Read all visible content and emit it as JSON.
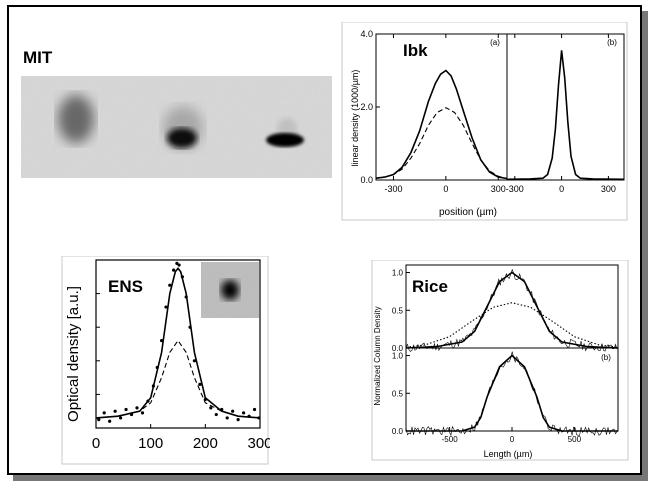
{
  "slide": {
    "title_mit": "MIT"
  },
  "chart_data": [
    {
      "id": "ibk",
      "type": "line",
      "label": "Ibk",
      "ylabel": "linear density (1000/µm)",
      "xlabel": "position (µm)",
      "panels": [
        {
          "tag": "(a)",
          "xlim": [
            -400,
            350
          ],
          "ylim": [
            0,
            4
          ],
          "xticks": [
            -300,
            0,
            300
          ],
          "yticks": [
            0.0,
            2.0,
            4.0
          ],
          "series": [
            {
              "style": "solid",
              "x": [
                -400,
                -350,
                -300,
                -250,
                -200,
                -150,
                -100,
                -60,
                -30,
                0,
                30,
                60,
                100,
                150,
                200,
                250,
                300,
                350
              ],
              "y": [
                0.05,
                0.08,
                0.15,
                0.35,
                0.75,
                1.35,
                2.15,
                2.65,
                2.9,
                3.0,
                2.85,
                2.5,
                1.9,
                1.15,
                0.55,
                0.22,
                0.08,
                0.04
              ]
            },
            {
              "style": "dashed",
              "x": [
                -400,
                -350,
                -300,
                -250,
                -200,
                -150,
                -100,
                -50,
                0,
                50,
                100,
                150,
                200,
                250,
                300,
                350
              ],
              "y": [
                0.05,
                0.08,
                0.15,
                0.3,
                0.6,
                1.0,
                1.5,
                1.85,
                1.98,
                1.85,
                1.5,
                1.0,
                0.55,
                0.25,
                0.1,
                0.04
              ]
            },
            {
              "style": "dotted",
              "x": [
                -400,
                350
              ],
              "y": [
                0,
                0
              ]
            }
          ]
        },
        {
          "tag": "(b)",
          "xlim": [
            -350,
            400
          ],
          "ylim": [
            0,
            4
          ],
          "xticks": [
            -300,
            0,
            300
          ],
          "series": [
            {
              "style": "solid",
              "x": [
                -350,
                -200,
                -120,
                -90,
                -60,
                -40,
                -20,
                0,
                20,
                40,
                60,
                90,
                120,
                200,
                400
              ],
              "y": [
                0.02,
                0.03,
                0.05,
                0.15,
                0.6,
                1.4,
                2.6,
                3.55,
                2.8,
                1.6,
                0.65,
                0.15,
                0.05,
                0.03,
                0.02
              ]
            },
            {
              "style": "dotted",
              "x": [
                -350,
                400
              ],
              "y": [
                0,
                0
              ]
            }
          ]
        }
      ]
    },
    {
      "id": "ens",
      "type": "scatter",
      "label": "ENS",
      "ylabel": "Optical density [a.u.]",
      "xlabel": "",
      "xlim": [
        0,
        300
      ],
      "ylim": [
        0,
        1
      ],
      "xticks": [
        0,
        100,
        200,
        300
      ],
      "series": [
        {
          "style": "solid",
          "x": [
            0,
            40,
            80,
            100,
            120,
            135,
            145,
            150,
            155,
            165,
            180,
            200,
            230,
            260,
            300
          ],
          "y": [
            0.06,
            0.07,
            0.1,
            0.18,
            0.45,
            0.8,
            0.93,
            0.95,
            0.93,
            0.8,
            0.45,
            0.18,
            0.1,
            0.07,
            0.06
          ]
        },
        {
          "style": "dashed",
          "x": [
            0,
            40,
            80,
            100,
            120,
            135,
            150,
            165,
            180,
            200,
            230,
            260,
            300
          ],
          "y": [
            0.06,
            0.07,
            0.1,
            0.15,
            0.3,
            0.45,
            0.52,
            0.45,
            0.3,
            0.15,
            0.1,
            0.07,
            0.06
          ]
        },
        {
          "style": "points",
          "x": [
            5,
            15,
            25,
            35,
            45,
            55,
            65,
            75,
            85,
            95,
            105,
            112,
            120,
            128,
            135,
            142,
            148,
            152,
            158,
            165,
            172,
            180,
            190,
            200,
            210,
            220,
            230,
            240,
            250,
            260,
            270,
            280,
            290,
            298
          ],
          "y": [
            0.05,
            0.09,
            0.04,
            0.1,
            0.06,
            0.11,
            0.08,
            0.12,
            0.09,
            0.16,
            0.25,
            0.36,
            0.52,
            0.72,
            0.85,
            0.94,
            0.98,
            0.97,
            0.9,
            0.78,
            0.6,
            0.4,
            0.26,
            0.17,
            0.12,
            0.08,
            0.11,
            0.06,
            0.1,
            0.05,
            0.09,
            0.07,
            0.11,
            0.06
          ]
        }
      ]
    },
    {
      "id": "rice",
      "type": "line",
      "label": "Rice",
      "ylabel": "Normalized Column Density",
      "xlabel": "Length (µm)",
      "xlim": [
        -850,
        850
      ],
      "xticks": [
        -500,
        0,
        500
      ],
      "panels": [
        {
          "tag": "",
          "ylim": [
            0,
            1.1
          ],
          "yticks": [
            0.0,
            0.5,
            1.0
          ],
          "series": [
            {
              "style": "solid",
              "x": [
                -850,
                -600,
                -400,
                -300,
                -200,
                -100,
                0,
                100,
                200,
                300,
                400,
                600,
                850
              ],
              "y": [
                0.0,
                0.02,
                0.08,
                0.22,
                0.55,
                0.88,
                1.0,
                0.88,
                0.55,
                0.22,
                0.08,
                0.02,
                0.0
              ]
            },
            {
              "style": "dotted",
              "x": [
                -850,
                -700,
                -500,
                -300,
                -150,
                0,
                150,
                300,
                500,
                700,
                850
              ],
              "y": [
                0.01,
                0.04,
                0.15,
                0.38,
                0.54,
                0.6,
                0.54,
                0.38,
                0.15,
                0.04,
                0.01
              ]
            }
          ]
        },
        {
          "tag": "(b)",
          "ylim": [
            0,
            1.1
          ],
          "yticks": [
            0.0,
            0.5,
            1.0
          ],
          "series": [
            {
              "style": "solid",
              "x": [
                -850,
                -400,
                -300,
                -250,
                -200,
                -100,
                0,
                100,
                200,
                250,
                300,
                400,
                850
              ],
              "y": [
                0.0,
                0.0,
                0.05,
                0.18,
                0.45,
                0.85,
                1.0,
                0.85,
                0.45,
                0.18,
                0.05,
                0.0,
                0.0
              ]
            }
          ]
        }
      ]
    }
  ]
}
